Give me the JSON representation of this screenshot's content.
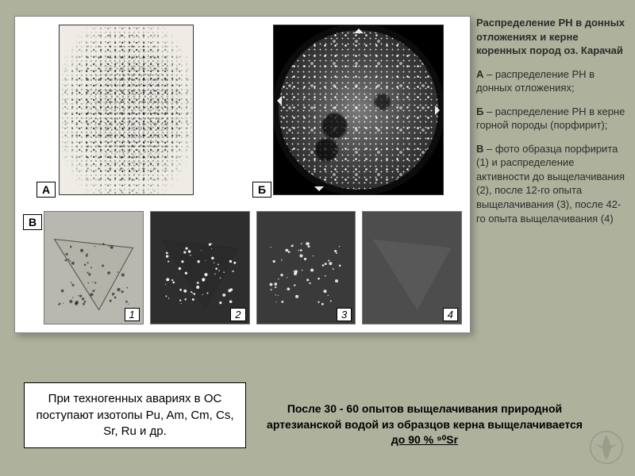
{
  "figure": {
    "labels": {
      "a": "А",
      "b": "Б",
      "v": "В"
    },
    "sub_numbers": [
      "1",
      "2",
      "3",
      "4"
    ],
    "panel_bg": "#ffffff",
    "page_bg": "#aeb19c",
    "sub_bg": [
      "#b8b8b0",
      "#2e2e2e",
      "#3a3a3a",
      "#4d4d4d"
    ],
    "tri_fill": [
      "#b4b3a9",
      "#2a2a2a",
      "#3a3a3a",
      "#585858"
    ],
    "dot_color": [
      "rgba(0,0,0,0.55)",
      "rgba(255,255,255,0.9)",
      "rgba(255,255,255,0.85)",
      "rgba(255,255,255,0.0)"
    ]
  },
  "sidebar": {
    "title": "Распределение РН в донных отложениях и керне коренных пород оз. Карачай",
    "para_a_lead": "А",
    "para_a": " – распределение РН в донных отложениях;",
    "para_b_lead": "Б",
    "para_b": " – распределение РН в керне горной породы (порфирит);",
    "para_v_lead": "В",
    "para_v": " – фото образца порфирита (1) и распределение активности до выщелачивания (2), после 12-го опыта выщелачивания (3), после 42-го опыта выщелачивания (4)"
  },
  "bottom_box": "При техногенных авариях в ОС поступают изотопы Pu, Am, Cm, Cs, Sr, Ru и др.",
  "bottom_text": {
    "line1": "После 30 - 60 опытов выщелачивания природной артезианской водой из образцов керна выщелачивается ",
    "ul": "до 90 % ⁹⁰Sr"
  },
  "logo_color": "#5a5a56"
}
